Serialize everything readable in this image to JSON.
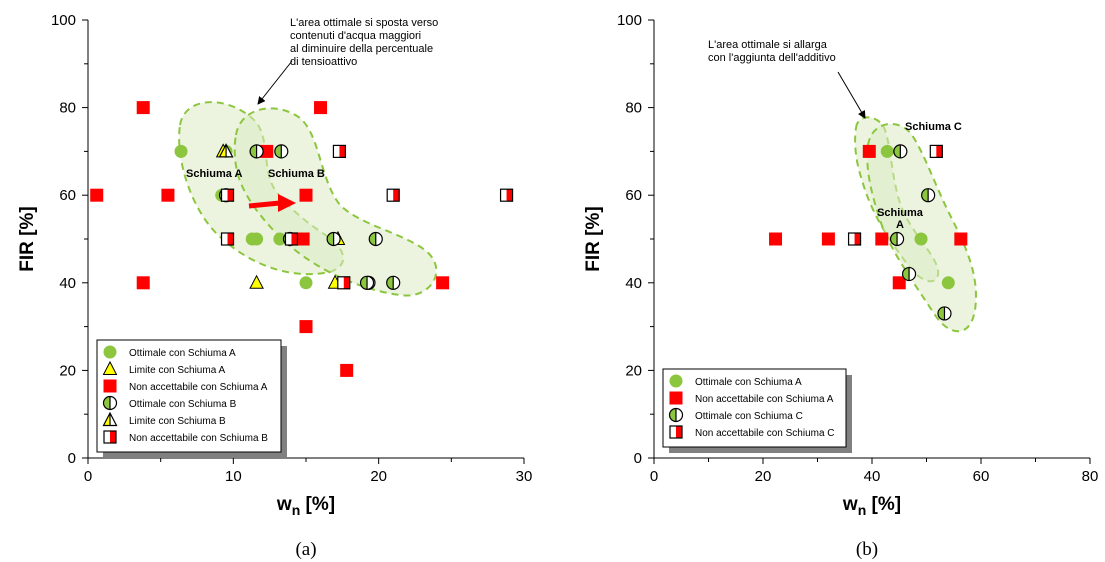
{
  "chart_data": [
    {
      "type": "scatter",
      "panel_label": "(a)",
      "xlabel": "w",
      "xlabel_sub": "n",
      "xlabel_unit": "[%]",
      "ylabel": "FIR [%]",
      "xlim": [
        0,
        30
      ],
      "ylim": [
        0,
        100
      ],
      "x_ticks": [
        0,
        10,
        20,
        30
      ],
      "y_ticks": [
        0,
        20,
        40,
        60,
        80,
        100
      ],
      "grid": false,
      "legend_position": "bottom-left",
      "series": [
        {
          "name": "Ottimale con Schiuma A",
          "marker": "circle-green",
          "points": [
            [
              6.4,
              70
            ],
            [
              9.5,
              70
            ],
            [
              9.2,
              60
            ],
            [
              11.3,
              50
            ],
            [
              11.6,
              50
            ],
            [
              13.2,
              50
            ],
            [
              15,
              40
            ]
          ]
        },
        {
          "name": "Limite con Schiuma A",
          "marker": "triangle-yellow",
          "points": [
            [
              9.3,
              70
            ],
            [
              11.6,
              40
            ],
            [
              17.2,
              50
            ],
            [
              17,
              40
            ]
          ]
        },
        {
          "name": "Non accettabile con Schiuma A",
          "marker": "square-red",
          "points": [
            [
              3.8,
              80
            ],
            [
              16,
              80
            ],
            [
              0.6,
              60
            ],
            [
              5.5,
              60
            ],
            [
              15,
              60
            ],
            [
              12.3,
              70
            ],
            [
              14.4,
              50
            ],
            [
              14.8,
              50
            ],
            [
              3.8,
              40
            ],
            [
              24.4,
              40
            ],
            [
              15,
              30
            ],
            [
              17.8,
              20
            ]
          ]
        },
        {
          "name": "Ottimale con Schiuma B",
          "marker": "circle-half",
          "points": [
            [
              11.6,
              70
            ],
            [
              13.3,
              70
            ],
            [
              9.5,
              60
            ],
            [
              16.9,
              50
            ],
            [
              19.8,
              50
            ],
            [
              13.9,
              50
            ],
            [
              19.3,
              40
            ],
            [
              19.2,
              40
            ],
            [
              21,
              40
            ]
          ]
        },
        {
          "name": "Limite con Schiuma B",
          "marker": "triangle-half",
          "points": [
            [
              9.5,
              70
            ]
          ]
        },
        {
          "name": "Non accettabile con Schiuma B",
          "marker": "square-half",
          "points": [
            [
              17.3,
              70
            ],
            [
              9.6,
              60
            ],
            [
              21,
              60
            ],
            [
              28.8,
              60
            ],
            [
              9.6,
              50
            ],
            [
              14,
              50
            ],
            [
              17.6,
              40
            ]
          ]
        }
      ],
      "annotations": [
        {
          "text": [
            "L'area ottimale si sposta verso",
            "contenuti d'acqua maggiori",
            "al diminuire della percentuale",
            "di tensioattivo"
          ]
        },
        {
          "text": "Schiuma A"
        },
        {
          "text": "Schiuma B"
        }
      ]
    },
    {
      "type": "scatter",
      "panel_label": "(b)",
      "xlabel": "w",
      "xlabel_sub": "n",
      "xlabel_unit": "[%]",
      "ylabel": "FIR [%]",
      "xlim": [
        0,
        80
      ],
      "ylim": [
        0,
        100
      ],
      "x_ticks": [
        0,
        20,
        40,
        60,
        80
      ],
      "y_ticks": [
        0,
        20,
        40,
        60,
        80,
        100
      ],
      "grid": false,
      "legend_position": "bottom-left",
      "series": [
        {
          "name": "Ottimale con Schiuma A",
          "marker": "circle-green",
          "points": [
            [
              42.8,
              70
            ],
            [
              49,
              50
            ],
            [
              54,
              40
            ]
          ]
        },
        {
          "name": "Non accettabile con Schiuma A",
          "marker": "square-red",
          "points": [
            [
              39.5,
              70
            ],
            [
              22.3,
              50
            ],
            [
              32,
              50
            ],
            [
              41.8,
              50
            ],
            [
              56.3,
              50
            ],
            [
              45,
              40
            ]
          ]
        },
        {
          "name": "Ottimale con Schiuma C",
          "marker": "circle-half",
          "points": [
            [
              45.2,
              70
            ],
            [
              50.3,
              60
            ],
            [
              44.6,
              50
            ],
            [
              46.8,
              42
            ],
            [
              53.3,
              33
            ]
          ]
        },
        {
          "name": "Non accettabile con Schiuma C",
          "marker": "square-half",
          "points": [
            [
              51.8,
              70
            ],
            [
              36.8,
              50
            ]
          ]
        }
      ],
      "annotations": [
        {
          "text": [
            "L'area ottimale si allarga",
            "con l'aggiunta dell'additivo"
          ]
        },
        {
          "text": "Schiuma C"
        },
        {
          "text": [
            "Schiuma",
            "A"
          ]
        }
      ]
    }
  ],
  "colors": {
    "green": "#8CC63F",
    "yellow": "#FFFF00",
    "red": "#FF0000",
    "zone_fill": "#DDEBC4",
    "zone_stroke": "#8CC63F",
    "arrow": "#FF0000",
    "shadow": "#808080"
  }
}
